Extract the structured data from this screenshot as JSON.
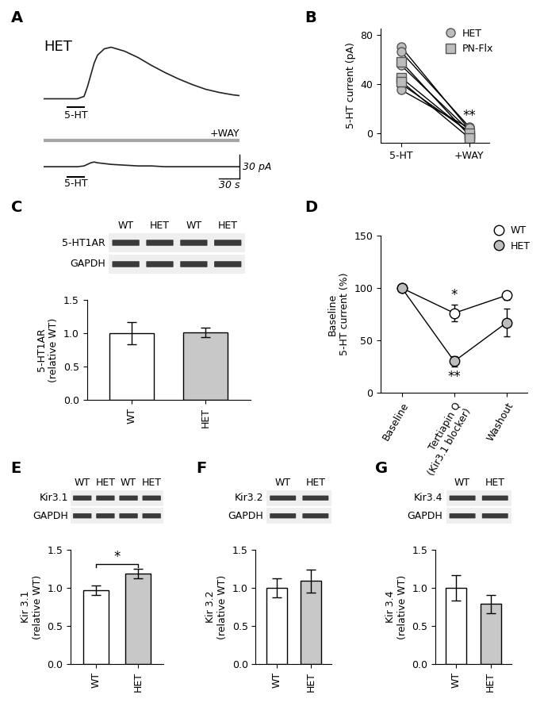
{
  "chart_data": [
    {
      "panel": "A",
      "type": "line",
      "tick_labels": false,
      "x": [
        0,
        20,
        35,
        50,
        60,
        65,
        70,
        75,
        80,
        90,
        100,
        120,
        140,
        160,
        180,
        200,
        220,
        240,
        260,
        280,
        290
      ],
      "xlim": [
        0,
        290
      ],
      "traces": [
        {
          "label": "HET",
          "ylim": [
            -15,
            75
          ],
          "values": [
            0,
            0,
            0,
            0,
            3,
            15,
            30,
            45,
            55,
            63,
            65,
            60,
            52,
            42,
            33,
            25,
            18,
            12,
            8,
            5,
            4
          ],
          "applications": [
            {
              "label": "5-HT",
              "start": 35,
              "end": 60,
              "color": "#000000"
            }
          ]
        },
        {
          "label": null,
          "ylim": [
            -15,
            35
          ],
          "values": [
            0,
            0,
            0,
            0,
            1,
            3,
            5,
            6,
            5,
            4,
            3,
            2,
            1,
            1,
            0,
            0,
            0,
            0,
            0,
            0,
            0
          ],
          "applications": [
            {
              "label": "+WAY",
              "start": 0,
              "end": 290,
              "color": "#a6a6a6"
            },
            {
              "label": "5-HT",
              "start": 35,
              "end": 60,
              "color": "#000000"
            }
          ]
        }
      ],
      "scale_bar": {
        "x": 30,
        "x_label": "30 s",
        "y": 30,
        "y_label": "30 pA"
      }
    },
    {
      "panel": "B",
      "type": "scatter",
      "categories": [
        "5-HT",
        "+WAY"
      ],
      "ylabel": "5-HT current (pA)",
      "ylim": [
        -8,
        85
      ],
      "yticks": [
        0,
        40,
        80
      ],
      "legend": "upper right",
      "series": [
        {
          "name": "HET",
          "marker": "o",
          "color": "#bdbdbd",
          "values": [
            [
              70,
              3
            ],
            [
              66,
              5
            ],
            [
              55,
              2
            ],
            [
              40,
              1
            ],
            [
              35,
              4
            ]
          ]
        },
        {
          "name": "PN-Flx",
          "marker": "s",
          "color": "#bdbdbd",
          "values": [
            [
              58,
              -2
            ],
            [
              45,
              0
            ],
            [
              42,
              -4
            ]
          ]
        }
      ],
      "annotations": [
        {
          "text": "**",
          "category": "+WAY"
        }
      ]
    },
    {
      "panel": "C",
      "type": "bar",
      "categories": [
        "WT",
        "HET"
      ],
      "values": [
        1.0,
        1.01
      ],
      "errors": [
        0.17,
        0.07
      ],
      "colors": [
        "#ffffff",
        "#c8c8c8"
      ],
      "ylabel": "5-HT1AR\n(relative WT)",
      "ylim": [
        0,
        1.5
      ],
      "yticks": [
        {
          "value": 0,
          "label": "0.0"
        },
        {
          "value": 0.5,
          "label": "0.5"
        },
        {
          "value": 1.0,
          "label": "1.0"
        },
        {
          "value": 1.5,
          "label": "1.5"
        }
      ],
      "blot": {
        "lanes": [
          "WT",
          "HET",
          "WT",
          "HET"
        ],
        "rows": [
          "5-HT1AR",
          "GAPDH"
        ]
      }
    },
    {
      "panel": "D",
      "type": "line",
      "categories": [
        "Baseline",
        "Tertiapin Q\n(Kir3.1 blocker)",
        "Washout"
      ],
      "ylabel": "Baseline\n5-HT current (%)",
      "ylim": [
        0,
        150
      ],
      "yticks": [
        0,
        50,
        100,
        150
      ],
      "legend": "upper right",
      "series": [
        {
          "name": "WT",
          "color": "#ffffff",
          "marker": "o",
          "values": [
            100,
            76,
            93
          ],
          "errors": [
            0,
            8,
            4
          ]
        },
        {
          "name": "HET",
          "color": "#bdbdbd",
          "marker": "o",
          "values": [
            100,
            30,
            67
          ],
          "errors": [
            0,
            5,
            13
          ]
        }
      ],
      "annotations": [
        {
          "text": "*",
          "series": "WT",
          "category": "Tertiapin Q\n(Kir3.1 blocker)"
        },
        {
          "text": "**",
          "series": "HET",
          "category": "Tertiapin Q\n(Kir3.1 blocker)"
        }
      ]
    },
    {
      "panel": "E",
      "type": "bar",
      "categories": [
        "WT",
        "HET"
      ],
      "values": [
        0.97,
        1.19
      ],
      "errors": [
        0.06,
        0.06
      ],
      "colors": [
        "#ffffff",
        "#c8c8c8"
      ],
      "ylabel": "Kir 3.1\n(relative WT)",
      "ylim": [
        0,
        1.5
      ],
      "yticks": [
        {
          "value": 0,
          "label": "0.0"
        },
        {
          "value": 0.5,
          "label": "0.5"
        },
        {
          "value": 1.0,
          "label": "1.0"
        },
        {
          "value": 1.5,
          "label": "1.5"
        }
      ],
      "significance": "*",
      "blot": {
        "lanes": [
          "WT",
          "HET",
          "WT",
          "HET"
        ],
        "rows": [
          "Kir3.1",
          "GAPDH"
        ]
      }
    },
    {
      "panel": "F",
      "type": "bar",
      "categories": [
        "WT",
        "HET"
      ],
      "values": [
        1.0,
        1.09
      ],
      "errors": [
        0.13,
        0.15
      ],
      "colors": [
        "#ffffff",
        "#c8c8c8"
      ],
      "ylabel": "Kir 3.2\n(relative WT)",
      "ylim": [
        0,
        1.5
      ],
      "yticks": [
        {
          "value": 0,
          "label": "0.0"
        },
        {
          "value": 0.5,
          "label": "0.5"
        },
        {
          "value": 1.0,
          "label": "1.0"
        },
        {
          "value": 1.5,
          "label": "1.5"
        }
      ],
      "blot": {
        "lanes": [
          "WT",
          "HET"
        ],
        "rows": [
          "Kir3.2",
          "GAPDH"
        ]
      }
    },
    {
      "panel": "G",
      "type": "bar",
      "categories": [
        "WT",
        "HET"
      ],
      "values": [
        1.0,
        0.79
      ],
      "errors": [
        0.17,
        0.12
      ],
      "colors": [
        "#ffffff",
        "#c8c8c8"
      ],
      "ylabel": "Kir 3.4\n(relative WT)",
      "ylim": [
        0,
        1.5
      ],
      "yticks": [
        {
          "value": 0,
          "label": "0.0"
        },
        {
          "value": 0.5,
          "label": "0.5"
        },
        {
          "value": 1.0,
          "label": "1.0"
        },
        {
          "value": 1.5,
          "label": "1.5"
        }
      ],
      "blot": {
        "lanes": [
          "WT",
          "HET"
        ],
        "rows": [
          "Kir3.4",
          "GAPDH"
        ]
      }
    }
  ]
}
